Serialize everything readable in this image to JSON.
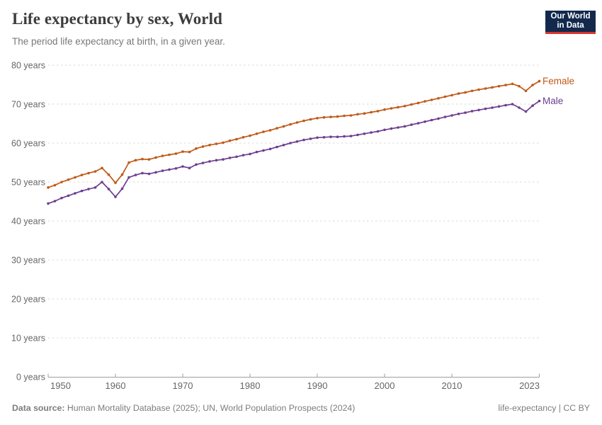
{
  "header": {
    "title": "Life expectancy by sex, World",
    "subtitle": "The period life expectancy at birth, in a given year.",
    "logo": {
      "line1": "Our World",
      "line2": "in Data"
    }
  },
  "footer": {
    "datasource_label": "Data source:",
    "datasource_text": " Human Mortality Database (2025); UN, World Population Prospects (2024)",
    "license_text": "life-expectancy | CC BY"
  },
  "colors": {
    "grid": "#dadada",
    "axis": "#9e9e9e",
    "tick_label": "#666666",
    "logo_bg": "#12294d",
    "logo_red": "#d8352e"
  },
  "chart_data": {
    "type": "line",
    "title": "Life expectancy by sex, World",
    "subtitle": "The period life expectancy at birth, in a given year.",
    "xlabel": "",
    "ylabel": "",
    "x_range": [
      1950,
      2023
    ],
    "ylim": [
      0,
      80
    ],
    "grid": true,
    "grid_style": "dashed",
    "legend_position": "end-of-line",
    "y_tick_unit": "years",
    "y_ticks": [
      {
        "value": 0,
        "label": "0 years"
      },
      {
        "value": 10,
        "label": "10 years"
      },
      {
        "value": 20,
        "label": "20 years"
      },
      {
        "value": 30,
        "label": "30 years"
      },
      {
        "value": 40,
        "label": "40 years"
      },
      {
        "value": 50,
        "label": "50 years"
      },
      {
        "value": 60,
        "label": "60 years"
      },
      {
        "value": 70,
        "label": "70 years"
      },
      {
        "value": 80,
        "label": "80 years"
      }
    ],
    "x_ticks": [
      {
        "value": 1950,
        "label": "1950"
      },
      {
        "value": 1960,
        "label": "1960"
      },
      {
        "value": 1970,
        "label": "1970"
      },
      {
        "value": 1980,
        "label": "1980"
      },
      {
        "value": 1990,
        "label": "1990"
      },
      {
        "value": 2000,
        "label": "2000"
      },
      {
        "value": 2010,
        "label": "2010"
      },
      {
        "value": 2023,
        "label": "2023"
      }
    ],
    "years": [
      1950,
      1951,
      1952,
      1953,
      1954,
      1955,
      1956,
      1957,
      1958,
      1959,
      1960,
      1961,
      1962,
      1963,
      1964,
      1965,
      1966,
      1967,
      1968,
      1969,
      1970,
      1971,
      1972,
      1973,
      1974,
      1975,
      1976,
      1977,
      1978,
      1979,
      1980,
      1981,
      1982,
      1983,
      1984,
      1985,
      1986,
      1987,
      1988,
      1989,
      1990,
      1991,
      1992,
      1993,
      1994,
      1995,
      1996,
      1997,
      1998,
      1999,
      2000,
      2001,
      2002,
      2003,
      2004,
      2005,
      2006,
      2007,
      2008,
      2009,
      2010,
      2011,
      2012,
      2013,
      2014,
      2015,
      2016,
      2017,
      2018,
      2019,
      2020,
      2021,
      2022,
      2023
    ],
    "series": [
      {
        "name": "Female",
        "color": "#c05917",
        "values": [
          48.6,
          49.2,
          50.0,
          50.6,
          51.2,
          51.8,
          52.3,
          52.7,
          53.6,
          51.9,
          49.8,
          51.9,
          55.0,
          55.6,
          55.9,
          55.8,
          56.3,
          56.7,
          57.0,
          57.3,
          57.8,
          57.7,
          58.6,
          59.1,
          59.5,
          59.8,
          60.1,
          60.6,
          61.0,
          61.5,
          61.9,
          62.4,
          62.9,
          63.3,
          63.8,
          64.3,
          64.8,
          65.3,
          65.7,
          66.1,
          66.4,
          66.6,
          66.7,
          66.8,
          67.0,
          67.1,
          67.4,
          67.6,
          67.9,
          68.2,
          68.6,
          68.9,
          69.2,
          69.5,
          69.9,
          70.3,
          70.7,
          71.1,
          71.5,
          71.9,
          72.3,
          72.7,
          73.0,
          73.4,
          73.7,
          74.0,
          74.3,
          74.6,
          74.9,
          75.2,
          74.6,
          73.4,
          74.9,
          75.9
        ]
      },
      {
        "name": "Male",
        "color": "#6d3e91",
        "values": [
          44.5,
          45.1,
          45.9,
          46.5,
          47.1,
          47.7,
          48.2,
          48.6,
          50.0,
          48.2,
          46.2,
          48.3,
          51.2,
          51.8,
          52.3,
          52.1,
          52.5,
          52.9,
          53.2,
          53.5,
          54.0,
          53.6,
          54.5,
          54.9,
          55.3,
          55.6,
          55.8,
          56.2,
          56.5,
          56.9,
          57.2,
          57.7,
          58.1,
          58.5,
          59.0,
          59.5,
          60.0,
          60.4,
          60.8,
          61.1,
          61.4,
          61.5,
          61.6,
          61.6,
          61.7,
          61.8,
          62.1,
          62.4,
          62.7,
          63.0,
          63.4,
          63.7,
          64.0,
          64.3,
          64.7,
          65.1,
          65.5,
          65.9,
          66.3,
          66.7,
          67.1,
          67.5,
          67.8,
          68.2,
          68.5,
          68.8,
          69.1,
          69.4,
          69.7,
          70.0,
          69.1,
          68.1,
          69.6,
          70.8
        ]
      }
    ]
  }
}
